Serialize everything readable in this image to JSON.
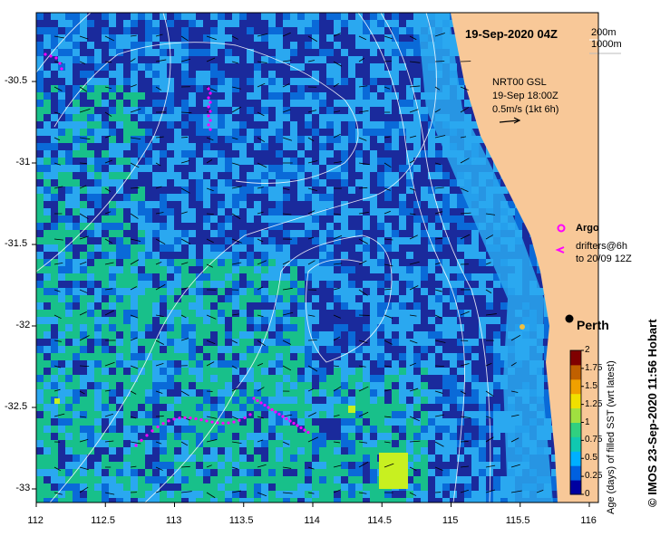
{
  "title": "19-Sep-2020 04Z",
  "contours": {
    "label_a": "200m",
    "label_b": "1000m"
  },
  "currents": {
    "line1": "NRT00 GSL",
    "line2": "19-Sep 18:00Z",
    "line3": "0.5m/s (1kt 6h)"
  },
  "legend": {
    "argo": "Argo",
    "drifters_line1": "drifters@6h",
    "drifters_line2": "to 20/09 12Z"
  },
  "city": "Perth",
  "credit": "© IMOS 23-Sep-2020 11:56 Hobart",
  "colorbar": {
    "title": "Age (days) of filled SST (wrt latest)",
    "ticks": [
      "0",
      "0.25",
      "0.5",
      "0.75",
      "1",
      "1.25",
      "1.5",
      "1.75",
      "2"
    ],
    "tick_values": [
      0,
      0.25,
      0.5,
      0.75,
      1,
      1.25,
      1.5,
      1.75,
      2
    ],
    "colors": [
      "#0000a0",
      "#0060e0",
      "#00b0ff",
      "#10c8b0",
      "#30d080",
      "#a0e040",
      "#f0e000",
      "#f0a000",
      "#c06000",
      "#800000"
    ]
  },
  "axes": {
    "lon_ticks": [
      "112",
      "112.5",
      "113",
      "113.5",
      "114",
      "114.5",
      "115",
      "115.5",
      "116"
    ],
    "lon_values": [
      112,
      112.5,
      113,
      113.5,
      114,
      114.5,
      115,
      115.5,
      116
    ],
    "lat_ticks": [
      "-30.5",
      "-31",
      "-31.5",
      "-32",
      "-32.5",
      "-33"
    ],
    "lat_values": [
      -30.5,
      -31,
      -31.5,
      -32,
      -32.5,
      -33
    ],
    "lon_range": [
      112,
      116
    ],
    "lat_range": [
      -33.1,
      -30.1
    ]
  },
  "colors": {
    "land": "#f8c898",
    "deep": "#1a2a9c",
    "mid": "#0a6ad8",
    "light": "#2aa8f0",
    "green": "#18c08a",
    "yellow": "#c8f020",
    "argo": "#ff00ff",
    "drifter": "#ff00ff"
  }
}
